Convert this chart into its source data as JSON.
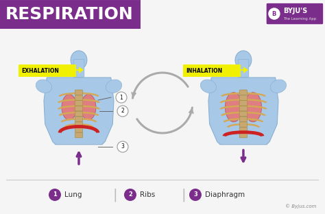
{
  "title": "RESPIRATION",
  "title_bg_color": "#7b2d8b",
  "title_text_color": "#ffffff",
  "bg_color": "#f5f5f5",
  "body_color": "#a8c8e8",
  "body_outline": "#8ab0d0",
  "lung_color": "#e87070",
  "rib_color": "#d4a855",
  "diaphragm_color": "#cc2222",
  "spine_color": "#c8a870",
  "label_exhalation": "EXHALATION",
  "label_inhalation": "INHALATION",
  "label_bg": "#f0f000",
  "label1": "Lung",
  "label2": "Ribs",
  "label3": "Diaphragm",
  "legend_circle_color": "#7b2d8b",
  "arrow_color": "#aaaaaa",
  "separator_line_color": "#cccccc",
  "copyright_text": "© Byjus.com",
  "byju_box_color": "#7b2d8b",
  "byju_text": "BYJU'S",
  "byju_sub": "The Learning App"
}
